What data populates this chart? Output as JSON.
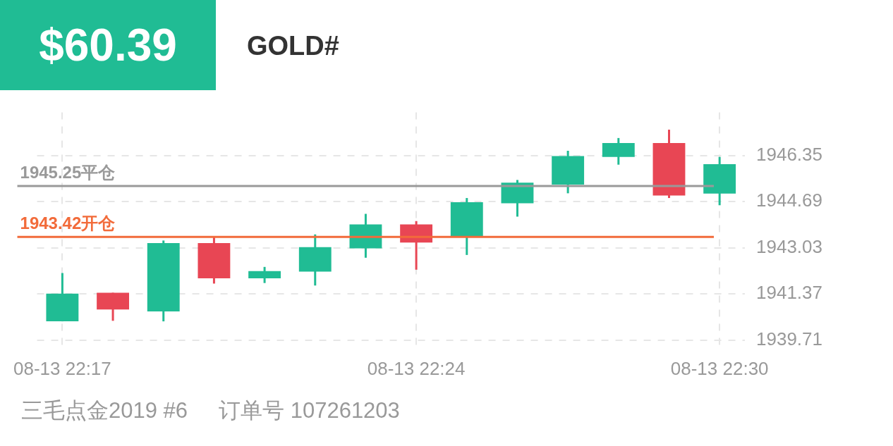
{
  "chart_data": {
    "type": "candlestick",
    "title": "GOLD#",
    "subtitle": "$60.39",
    "categories": [
      "08-13 22:17",
      null,
      null,
      null,
      null,
      null,
      null,
      "08-13 22:24",
      null,
      null,
      null,
      null,
      null,
      "08-13 22:30"
    ],
    "ohlc": [
      [
        1940.38,
        1942.12,
        1940.38,
        1941.38
      ],
      [
        1941.41,
        1941.41,
        1940.4,
        1940.81
      ],
      [
        1940.74,
        1943.29,
        1940.38,
        1943.2
      ],
      [
        1943.2,
        1943.44,
        1941.74,
        1941.93
      ],
      [
        1941.93,
        1942.34,
        1941.76,
        1942.19
      ],
      [
        1942.17,
        1943.51,
        1941.67,
        1943.05
      ],
      [
        1943.01,
        1944.25,
        1942.67,
        1943.87
      ],
      [
        1943.87,
        1943.99,
        1942.24,
        1943.22
      ],
      [
        1943.41,
        1944.82,
        1942.77,
        1944.67
      ],
      [
        1944.63,
        1945.47,
        1944.15,
        1945.37
      ],
      [
        1945.3,
        1946.52,
        1944.99,
        1946.33
      ],
      [
        1946.3,
        1946.98,
        1946.02,
        1946.8
      ],
      [
        1946.8,
        1947.28,
        1944.82,
        1944.91
      ],
      [
        1944.98,
        1946.3,
        1944.56,
        1946.04
      ]
    ],
    "colors": [
      "#20bc94",
      "#e84654",
      "#20bc94",
      "#e84654",
      "#20bc94",
      "#20bc94",
      "#20bc94",
      "#e84654",
      "#20bc94",
      "#20bc94",
      "#20bc94",
      "#20bc94",
      "#e84654",
      "#20bc94"
    ],
    "ylim": [
      1939.5,
      1947.9
    ],
    "yticks": [
      1939.71,
      1941.37,
      1943.03,
      1944.69,
      1946.35
    ],
    "grid": true,
    "ref_lines": [
      {
        "axis": "y",
        "value": 1945.25,
        "label": "1945.25平仓",
        "color": "#999999"
      },
      {
        "axis": "y",
        "value": 1943.42,
        "label": "1943.42开仓",
        "color": "#f26b3a"
      }
    ],
    "annotations": [
      "三毛点金2019 #6",
      "订单号 107261203"
    ]
  }
}
